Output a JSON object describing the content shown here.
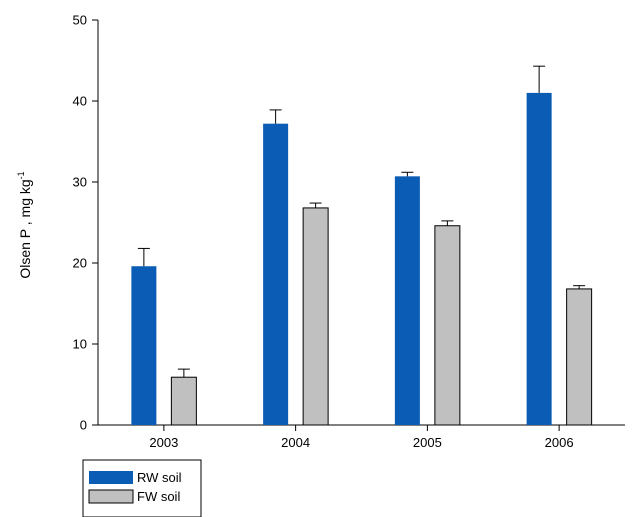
{
  "chart_data": {
    "type": "bar",
    "title": "",
    "xlabel": "",
    "ylabel": "Olsen P , mg kg",
    "ylabel_superscript": "-1",
    "categories": [
      "2003",
      "2004",
      "2005",
      "2006"
    ],
    "ylim": [
      0,
      50
    ],
    "yticks": [
      0,
      10,
      20,
      30,
      40,
      50
    ],
    "grid": false,
    "legend_position": "bottom-left, below plot",
    "series": [
      {
        "name": "RW soil",
        "color": "#0a5cb4",
        "values": [
          19.6,
          37.2,
          30.7,
          41.0
        ],
        "errors": [
          2.2,
          1.7,
          0.5,
          3.3
        ]
      },
      {
        "name": "FW soil",
        "color": "#c0c0c0",
        "values": [
          5.9,
          26.8,
          24.6,
          16.8
        ],
        "errors": [
          1.0,
          0.6,
          0.6,
          0.4
        ]
      }
    ]
  }
}
